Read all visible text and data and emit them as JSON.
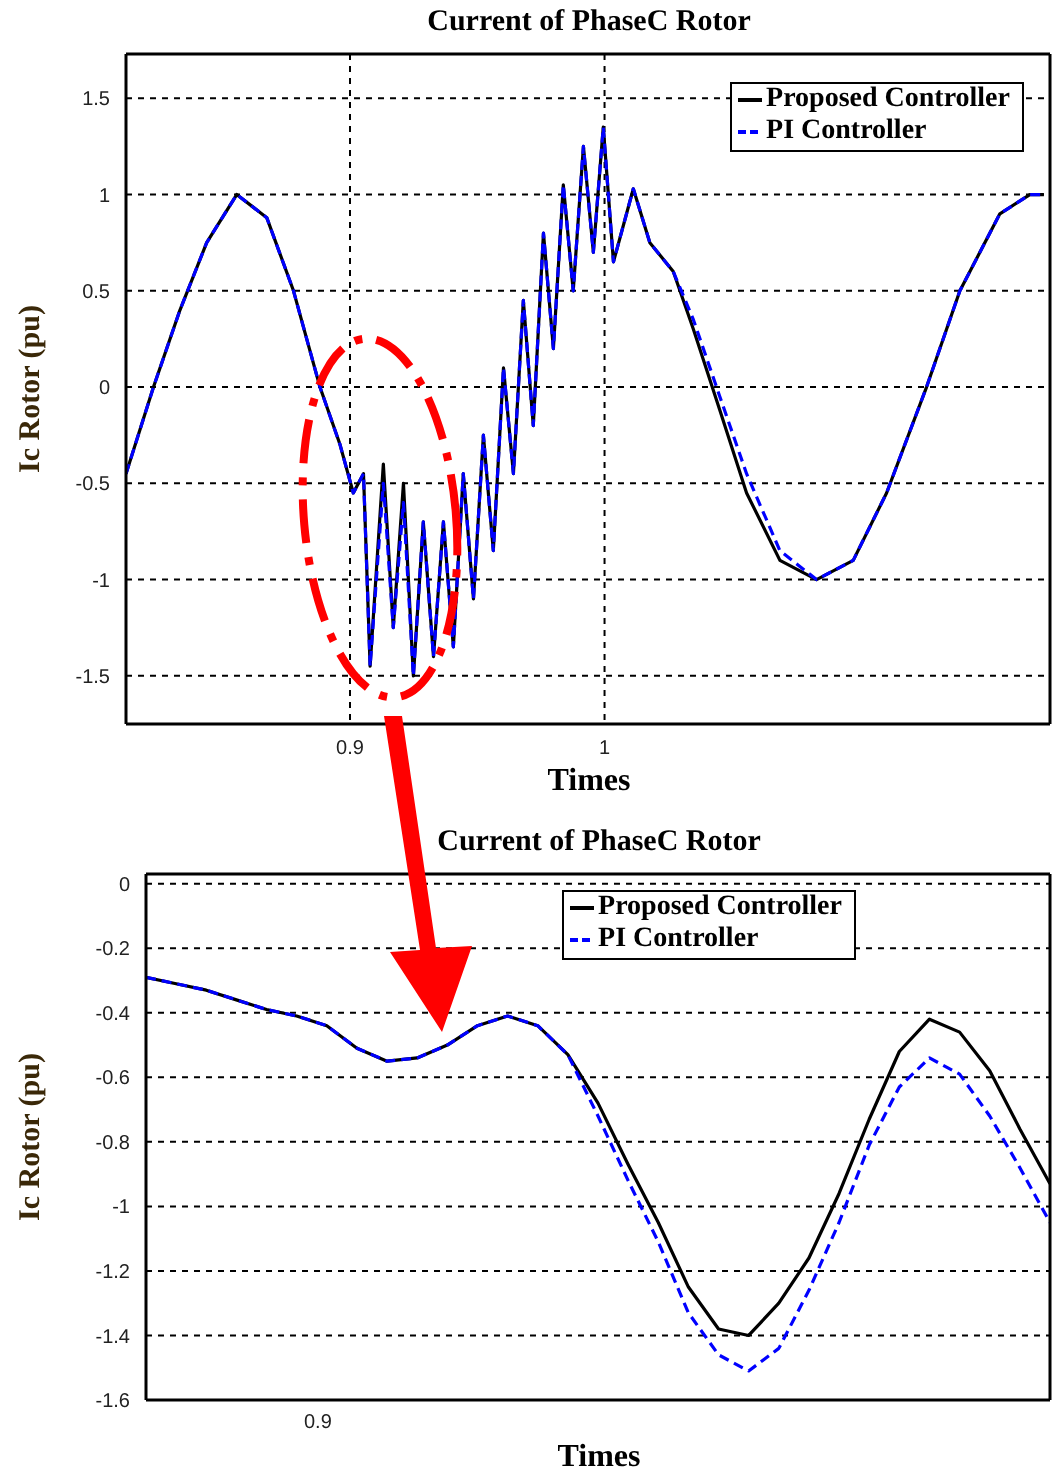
{
  "chart_data": [
    {
      "type": "line",
      "title": "Current of PhaseC Rotor",
      "xlabel": "Times",
      "ylabel": "Ic Rotor (pu)",
      "xlim": [
        0.812,
        1.175
      ],
      "xticks": [
        0.9,
        1
      ],
      "ylim": [
        -1.75,
        1.73
      ],
      "yticks": [
        -1.5,
        -1,
        -0.5,
        0,
        0.5,
        1,
        1.5
      ],
      "grid": true,
      "legend": "top right",
      "marker": "none",
      "series": [
        {
          "name": "Proposed Controller",
          "color": "#000000",
          "line_style": "solid",
          "x": [
            0.812,
            0.8228,
            0.8332,
            0.8437,
            0.8555,
            0.8673,
            0.8778,
            0.8882,
            0.8961,
            0.9013,
            0.9053,
            0.9079,
            0.9131,
            0.917,
            0.921,
            0.9249,
            0.9288,
            0.9328,
            0.9367,
            0.9406,
            0.9445,
            0.9485,
            0.9524,
            0.9563,
            0.9603,
            0.9642,
            0.9681,
            0.972,
            0.976,
            0.9799,
            0.9838,
            0.9877,
            0.9917,
            0.9956,
            0.9995,
            1.0035,
            1.0113,
            1.0178,
            1.027,
            1.0349,
            1.0453,
            1.0558,
            1.0689,
            1.0833,
            1.0977,
            1.1108,
            1.1265,
            1.1396,
            1.1553,
            1.1671,
            1.1726
          ],
          "values": [
            -0.45,
            0,
            0.4,
            0.75,
            1.0,
            0.88,
            0.5,
            0,
            -0.3,
            -0.55,
            -0.45,
            -1.45,
            -0.4,
            -1.25,
            -0.5,
            -1.5,
            -0.7,
            -1.4,
            -0.7,
            -1.35,
            -0.45,
            -1.1,
            -0.25,
            -0.85,
            0.1,
            -0.45,
            0.45,
            -0.2,
            0.8,
            0.2,
            1.05,
            0.5,
            1.25,
            0.7,
            1.35,
            0.65,
            1.03,
            0.75,
            0.6,
            0.3,
            -0.12,
            -0.55,
            -0.9,
            -1.0,
            -0.9,
            -0.55,
            0,
            0.5,
            0.9,
            1.0,
            1.0
          ]
        },
        {
          "name": "PI Controller",
          "color": "#0000ff",
          "line_style": "dashed",
          "x": [
            0.812,
            0.8228,
            0.8332,
            0.8437,
            0.8555,
            0.8673,
            0.8778,
            0.8882,
            0.8961,
            0.9013,
            0.9053,
            0.9079,
            0.9131,
            0.917,
            0.921,
            0.9249,
            0.9288,
            0.9328,
            0.9367,
            0.9406,
            0.9445,
            0.9485,
            0.9524,
            0.9563,
            0.9603,
            0.9642,
            0.9681,
            0.972,
            0.976,
            0.9799,
            0.9838,
            0.9877,
            0.9917,
            0.9956,
            0.9995,
            1.0035,
            1.0113,
            1.0178,
            1.027,
            1.0349,
            1.0453,
            1.0558,
            1.0689,
            1.0833,
            1.0977,
            1.1108,
            1.1265,
            1.1396,
            1.1553,
            1.1671,
            1.1726
          ],
          "values": [
            -0.45,
            0,
            0.4,
            0.75,
            1.0,
            0.88,
            0.5,
            0,
            -0.3,
            -0.55,
            -0.45,
            -1.45,
            -0.5,
            -1.25,
            -0.6,
            -1.5,
            -0.7,
            -1.4,
            -0.7,
            -1.35,
            -0.45,
            -1.1,
            -0.25,
            -0.85,
            0.1,
            -0.45,
            0.45,
            -0.2,
            0.8,
            0.2,
            1.05,
            0.5,
            1.25,
            0.7,
            1.35,
            0.65,
            1.03,
            0.75,
            0.6,
            0.35,
            -0.05,
            -0.45,
            -0.85,
            -1.0,
            -0.9,
            -0.55,
            0,
            0.5,
            0.9,
            1.0,
            1.0
          ]
        }
      ]
    },
    {
      "type": "line",
      "title": "Current of PhaseC Rotor",
      "xlabel": "Times",
      "ylabel": "Ic Rotor (pu)",
      "annotations": [
        "0.9"
      ],
      "categories": [
        null,
        null,
        null,
        null,
        null,
        null,
        null,
        null,
        null,
        null,
        null,
        null,
        null,
        null,
        null,
        null,
        null,
        null,
        null,
        null,
        null,
        null,
        null,
        null,
        null,
        null,
        null,
        null,
        null,
        null,
        null
      ],
      "ylim": [
        -1.6,
        0.03
      ],
      "yticks": [
        -1.6,
        -1.4,
        -1.2,
        -1,
        -0.8,
        -0.6,
        -0.4,
        -0.2,
        0
      ],
      "grid": "y",
      "legend": "top right",
      "marker": "none",
      "series": [
        {
          "name": "Proposed Controller",
          "color": "#000000",
          "line_style": "solid",
          "values": [
            -0.29,
            -0.31,
            -0.33,
            -0.36,
            -0.39,
            -0.41,
            -0.44,
            -0.51,
            -0.55,
            -0.54,
            -0.5,
            -0.44,
            -0.41,
            -0.44,
            -0.53,
            -0.68,
            -0.87,
            -1.05,
            -1.25,
            -1.38,
            -1.4,
            -1.3,
            -1.16,
            -0.96,
            -0.73,
            -0.52,
            -0.42,
            -0.46,
            -0.58,
            -0.76,
            -0.93
          ]
        },
        {
          "name": "PI Controller",
          "color": "#0000ff",
          "line_style": "dashed",
          "values": [
            -0.29,
            -0.31,
            -0.33,
            -0.36,
            -0.39,
            -0.41,
            -0.44,
            -0.51,
            -0.55,
            -0.54,
            -0.5,
            -0.44,
            -0.41,
            -0.44,
            -0.53,
            -0.72,
            -0.92,
            -1.11,
            -1.33,
            -1.46,
            -1.51,
            -1.44,
            -1.26,
            -1.05,
            -0.81,
            -0.63,
            -0.54,
            -0.59,
            -0.72,
            -0.88,
            -1.05
          ]
        }
      ]
    }
  ]
}
